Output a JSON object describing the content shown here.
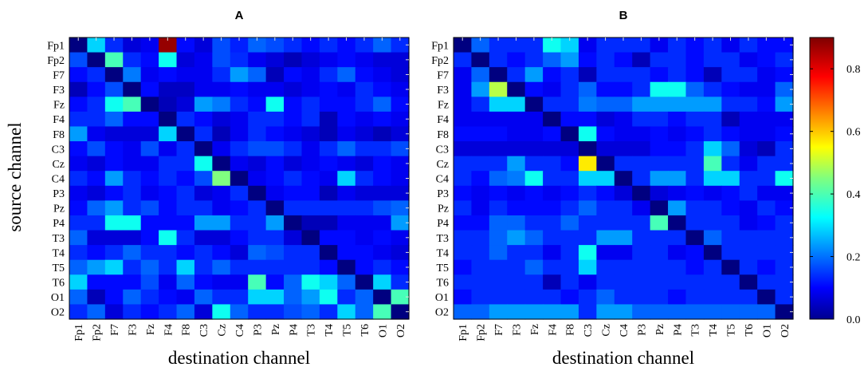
{
  "chart_data": [
    {
      "type": "heatmap",
      "title": "A",
      "xlabel": "destination channel",
      "ylabel": "source channel",
      "x_categories": [
        "Fp1",
        "Fp2",
        "F7",
        "F3",
        "Fz",
        "F4",
        "F8",
        "C3",
        "Cz",
        "C4",
        "P3",
        "Pz",
        "P4",
        "T3",
        "T4",
        "T5",
        "T6",
        "O1",
        "O2"
      ],
      "y_categories": [
        "Fp1",
        "Fp2",
        "F7",
        "F3",
        "Fz",
        "F4",
        "F8",
        "C3",
        "Cz",
        "C4",
        "P3",
        "Pz",
        "P4",
        "T3",
        "T4",
        "T5",
        "T6",
        "O1",
        "O2"
      ],
      "values": [
        [
          0.0,
          0.3,
          0.15,
          0.08,
          0.1,
          0.88,
          0.12,
          0.08,
          0.18,
          0.14,
          0.2,
          0.18,
          0.15,
          0.12,
          0.15,
          0.12,
          0.15,
          0.2,
          0.15
        ],
        [
          0.18,
          0.0,
          0.4,
          0.15,
          0.12,
          0.35,
          0.08,
          0.1,
          0.18,
          0.15,
          0.1,
          0.08,
          0.05,
          0.08,
          0.1,
          0.12,
          0.1,
          0.08,
          0.08
        ],
        [
          0.12,
          0.15,
          0.0,
          0.22,
          0.1,
          0.12,
          0.1,
          0.1,
          0.15,
          0.25,
          0.2,
          0.05,
          0.12,
          0.1,
          0.15,
          0.2,
          0.12,
          0.1,
          0.08
        ],
        [
          0.05,
          0.12,
          0.18,
          0.0,
          0.12,
          0.06,
          0.06,
          0.1,
          0.1,
          0.12,
          0.1,
          0.1,
          0.08,
          0.1,
          0.12,
          0.1,
          0.15,
          0.12,
          0.1
        ],
        [
          0.12,
          0.15,
          0.35,
          0.4,
          0.0,
          0.05,
          0.08,
          0.25,
          0.22,
          0.15,
          0.12,
          0.35,
          0.12,
          0.15,
          0.12,
          0.12,
          0.15,
          0.2,
          0.12
        ],
        [
          0.15,
          0.15,
          0.2,
          0.12,
          0.12,
          0.0,
          0.15,
          0.12,
          0.08,
          0.1,
          0.15,
          0.15,
          0.12,
          0.15,
          0.05,
          0.12,
          0.1,
          0.12,
          0.1
        ],
        [
          0.25,
          0.1,
          0.08,
          0.08,
          0.08,
          0.3,
          0.0,
          0.15,
          0.05,
          0.1,
          0.15,
          0.12,
          0.1,
          0.08,
          0.05,
          0.1,
          0.08,
          0.05,
          0.08
        ],
        [
          0.12,
          0.18,
          0.12,
          0.1,
          0.18,
          0.1,
          0.15,
          0.0,
          0.1,
          0.15,
          0.18,
          0.18,
          0.15,
          0.1,
          0.15,
          0.2,
          0.15,
          0.15,
          0.18
        ],
        [
          0.1,
          0.08,
          0.12,
          0.1,
          0.1,
          0.15,
          0.15,
          0.35,
          0.0,
          0.1,
          0.08,
          0.12,
          0.08,
          0.1,
          0.12,
          0.1,
          0.08,
          0.12,
          0.1
        ],
        [
          0.15,
          0.12,
          0.25,
          0.15,
          0.12,
          0.15,
          0.12,
          0.18,
          0.45,
          0.0,
          0.1,
          0.12,
          0.15,
          0.12,
          0.1,
          0.3,
          0.15,
          0.12,
          0.1
        ],
        [
          0.1,
          0.08,
          0.12,
          0.15,
          0.1,
          0.12,
          0.15,
          0.08,
          0.1,
          0.15,
          0.0,
          0.1,
          0.12,
          0.12,
          0.05,
          0.1,
          0.08,
          0.08,
          0.08
        ],
        [
          0.12,
          0.2,
          0.25,
          0.15,
          0.18,
          0.12,
          0.15,
          0.15,
          0.1,
          0.12,
          0.15,
          0.0,
          0.15,
          0.15,
          0.15,
          0.15,
          0.15,
          0.18,
          0.2
        ],
        [
          0.15,
          0.15,
          0.35,
          0.35,
          0.12,
          0.12,
          0.12,
          0.25,
          0.25,
          0.15,
          0.15,
          0.25,
          0.0,
          0.05,
          0.05,
          0.1,
          0.1,
          0.1,
          0.25
        ],
        [
          0.2,
          0.08,
          0.08,
          0.08,
          0.12,
          0.35,
          0.15,
          0.08,
          0.08,
          0.12,
          0.15,
          0.15,
          0.08,
          0.0,
          0.12,
          0.12,
          0.1,
          0.12,
          0.1
        ],
        [
          0.15,
          0.12,
          0.15,
          0.2,
          0.15,
          0.15,
          0.12,
          0.15,
          0.12,
          0.08,
          0.2,
          0.18,
          0.15,
          0.15,
          0.0,
          0.12,
          0.12,
          0.1,
          0.08
        ],
        [
          0.2,
          0.25,
          0.3,
          0.15,
          0.2,
          0.15,
          0.3,
          0.15,
          0.2,
          0.15,
          0.15,
          0.15,
          0.15,
          0.15,
          0.12,
          0.0,
          0.12,
          0.15,
          0.12
        ],
        [
          0.3,
          0.12,
          0.12,
          0.12,
          0.18,
          0.1,
          0.2,
          0.12,
          0.1,
          0.1,
          0.4,
          0.12,
          0.2,
          0.35,
          0.3,
          0.2,
          0.0,
          0.3,
          0.15
        ],
        [
          0.2,
          0.05,
          0.12,
          0.2,
          0.15,
          0.12,
          0.1,
          0.2,
          0.15,
          0.15,
          0.3,
          0.3,
          0.2,
          0.25,
          0.35,
          0.15,
          0.2,
          0.0,
          0.4
        ],
        [
          0.15,
          0.2,
          0.08,
          0.15,
          0.12,
          0.15,
          0.2,
          0.08,
          0.35,
          0.2,
          0.15,
          0.15,
          0.18,
          0.2,
          0.15,
          0.3,
          0.2,
          0.4,
          0.0
        ]
      ]
    },
    {
      "type": "heatmap",
      "title": "B",
      "xlabel": "destination channel",
      "ylabel": "",
      "x_categories": [
        "Fp1",
        "Fp2",
        "F7",
        "F3",
        "Fz",
        "F4",
        "F8",
        "C3",
        "Cz",
        "C4",
        "P3",
        "Pz",
        "P4",
        "T3",
        "T4",
        "T5",
        "T6",
        "O1",
        "O2"
      ],
      "y_categories": [
        "Fp1",
        "Fp2",
        "F7",
        "F3",
        "Fz",
        "F4",
        "F8",
        "C3",
        "Cz",
        "C4",
        "P3",
        "Pz",
        "P4",
        "T3",
        "T4",
        "T5",
        "T6",
        "O1",
        "O2"
      ],
      "values": [
        [
          0.0,
          0.2,
          0.15,
          0.15,
          0.15,
          0.35,
          0.3,
          0.1,
          0.15,
          0.15,
          0.15,
          0.1,
          0.15,
          0.12,
          0.15,
          0.1,
          0.15,
          0.12,
          0.12
        ],
        [
          0.15,
          0.0,
          0.15,
          0.12,
          0.15,
          0.2,
          0.25,
          0.12,
          0.15,
          0.12,
          0.05,
          0.15,
          0.15,
          0.12,
          0.15,
          0.15,
          0.1,
          0.12,
          0.15
        ],
        [
          0.1,
          0.2,
          0.0,
          0.15,
          0.25,
          0.12,
          0.15,
          0.05,
          0.15,
          0.15,
          0.15,
          0.12,
          0.15,
          0.12,
          0.05,
          0.15,
          0.15,
          0.1,
          0.12
        ],
        [
          0.1,
          0.25,
          0.5,
          0.0,
          0.12,
          0.1,
          0.15,
          0.2,
          0.12,
          0.12,
          0.15,
          0.35,
          0.35,
          0.2,
          0.15,
          0.12,
          0.1,
          0.1,
          0.2
        ],
        [
          0.1,
          0.15,
          0.3,
          0.3,
          0.0,
          0.15,
          0.15,
          0.22,
          0.2,
          0.2,
          0.25,
          0.25,
          0.25,
          0.25,
          0.25,
          0.15,
          0.15,
          0.12,
          0.25
        ],
        [
          0.1,
          0.1,
          0.1,
          0.1,
          0.1,
          0.0,
          0.12,
          0.12,
          0.08,
          0.1,
          0.15,
          0.15,
          0.12,
          0.15,
          0.15,
          0.05,
          0.1,
          0.1,
          0.1
        ],
        [
          0.12,
          0.12,
          0.12,
          0.1,
          0.1,
          0.12,
          0.0,
          0.35,
          0.12,
          0.1,
          0.1,
          0.12,
          0.1,
          0.12,
          0.15,
          0.12,
          0.1,
          0.1,
          0.12
        ],
        [
          0.08,
          0.08,
          0.08,
          0.08,
          0.08,
          0.08,
          0.08,
          0.0,
          0.08,
          0.08,
          0.08,
          0.12,
          0.12,
          0.15,
          0.3,
          0.2,
          0.08,
          0.05,
          0.15
        ],
        [
          0.15,
          0.15,
          0.15,
          0.25,
          0.15,
          0.15,
          0.12,
          0.58,
          0.0,
          0.15,
          0.15,
          0.15,
          0.15,
          0.15,
          0.4,
          0.15,
          0.1,
          0.15,
          0.15
        ],
        [
          0.15,
          0.12,
          0.2,
          0.22,
          0.35,
          0.15,
          0.15,
          0.3,
          0.3,
          0.0,
          0.15,
          0.25,
          0.25,
          0.15,
          0.3,
          0.3,
          0.15,
          0.15,
          0.35
        ],
        [
          0.12,
          0.1,
          0.12,
          0.1,
          0.12,
          0.1,
          0.12,
          0.15,
          0.12,
          0.08,
          0.0,
          0.08,
          0.1,
          0.12,
          0.1,
          0.12,
          0.15,
          0.1,
          0.1
        ],
        [
          0.15,
          0.1,
          0.15,
          0.12,
          0.12,
          0.12,
          0.15,
          0.2,
          0.15,
          0.15,
          0.1,
          0.0,
          0.25,
          0.15,
          0.15,
          0.12,
          0.1,
          0.15,
          0.12
        ],
        [
          0.12,
          0.12,
          0.2,
          0.2,
          0.15,
          0.15,
          0.2,
          0.15,
          0.15,
          0.15,
          0.15,
          0.4,
          0.0,
          0.15,
          0.15,
          0.15,
          0.1,
          0.12,
          0.15
        ],
        [
          0.15,
          0.15,
          0.2,
          0.25,
          0.2,
          0.15,
          0.15,
          0.15,
          0.25,
          0.25,
          0.15,
          0.15,
          0.15,
          0.0,
          0.2,
          0.15,
          0.15,
          0.15,
          0.15
        ],
        [
          0.15,
          0.15,
          0.2,
          0.15,
          0.15,
          0.1,
          0.15,
          0.35,
          0.1,
          0.1,
          0.15,
          0.15,
          0.1,
          0.12,
          0.0,
          0.15,
          0.15,
          0.15,
          0.15
        ],
        [
          0.12,
          0.15,
          0.15,
          0.15,
          0.2,
          0.15,
          0.15,
          0.3,
          0.15,
          0.15,
          0.15,
          0.15,
          0.15,
          0.12,
          0.15,
          0.0,
          0.15,
          0.12,
          0.15
        ],
        [
          0.15,
          0.15,
          0.15,
          0.15,
          0.15,
          0.05,
          0.15,
          0.1,
          0.15,
          0.15,
          0.15,
          0.15,
          0.15,
          0.15,
          0.15,
          0.15,
          0.0,
          0.15,
          0.15
        ],
        [
          0.12,
          0.15,
          0.15,
          0.15,
          0.15,
          0.15,
          0.12,
          0.15,
          0.2,
          0.15,
          0.15,
          0.15,
          0.12,
          0.15,
          0.15,
          0.15,
          0.15,
          0.0,
          0.15
        ],
        [
          0.2,
          0.2,
          0.25,
          0.25,
          0.25,
          0.25,
          0.25,
          0.15,
          0.25,
          0.25,
          0.2,
          0.2,
          0.2,
          0.2,
          0.2,
          0.2,
          0.2,
          0.2,
          0.0
        ]
      ]
    }
  ],
  "colorbar": {
    "colormap": "jet",
    "range": [
      0.0,
      0.9
    ],
    "ticks": [
      0.0,
      0.2,
      0.4,
      0.6,
      0.8
    ],
    "tick_labels": [
      "0.0",
      "0.2",
      "0.4",
      "0.6",
      "0.8"
    ]
  }
}
